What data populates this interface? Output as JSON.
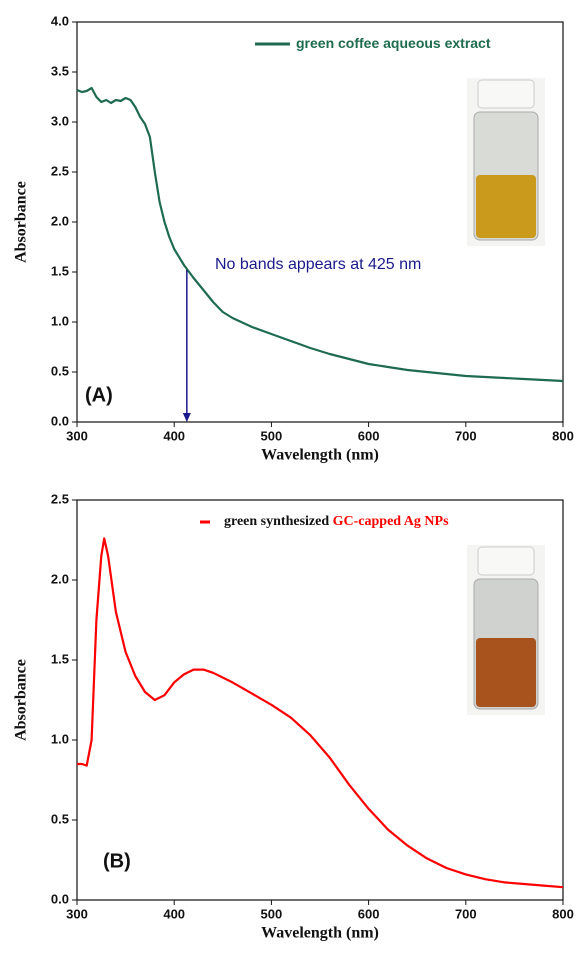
{
  "chart_data": [
    {
      "type": "line",
      "x_label": "Wavelength (nm)",
      "y_label": "Absorbance",
      "xlim": [
        300,
        800
      ],
      "xticks": [
        300,
        400,
        500,
        600,
        700,
        800
      ],
      "ylim": [
        0,
        4
      ],
      "yticks": [
        {
          "value": 0,
          "label": "0.0"
        },
        {
          "value": 0.5,
          "label": "0.5"
        },
        {
          "value": 1,
          "label": "1.0"
        },
        {
          "value": 1.5,
          "label": "1.5"
        },
        {
          "value": 2,
          "label": "2.0"
        },
        {
          "value": 2.5,
          "label": "2.5"
        },
        {
          "value": 3,
          "label": "3.0"
        },
        {
          "value": 3.5,
          "label": "3.5"
        },
        {
          "value": 4,
          "label": "4.0"
        }
      ],
      "series": [
        {
          "name": "green coffee aqueous extract",
          "color": "#1e6b4f",
          "x": [
            300,
            305,
            310,
            315,
            320,
            325,
            330,
            335,
            340,
            345,
            350,
            355,
            360,
            365,
            370,
            375,
            380,
            385,
            390,
            395,
            400,
            410,
            420,
            430,
            440,
            450,
            460,
            480,
            500,
            520,
            540,
            560,
            580,
            600,
            620,
            640,
            660,
            680,
            700,
            720,
            740,
            760,
            780,
            800
          ],
          "values": [
            3.32,
            3.3,
            3.31,
            3.34,
            3.25,
            3.2,
            3.22,
            3.19,
            3.22,
            3.21,
            3.24,
            3.22,
            3.15,
            3.05,
            2.98,
            2.85,
            2.5,
            2.2,
            2.0,
            1.85,
            1.73,
            1.57,
            1.44,
            1.32,
            1.2,
            1.1,
            1.04,
            0.95,
            0.88,
            0.81,
            0.74,
            0.68,
            0.63,
            0.58,
            0.55,
            0.52,
            0.5,
            0.48,
            0.46,
            0.45,
            0.44,
            0.43,
            0.42,
            0.41
          ]
        }
      ],
      "annotation": "No bands appears at 425 nm",
      "annotation_color": "#1a1a8c",
      "arrow": {
        "x": 413,
        "from": 1.52,
        "to": 0
      },
      "panel_label": "(A)"
    },
    {
      "type": "line",
      "x_label": "Wavelength (nm)",
      "y_label": "Absorbance",
      "xlim": [
        300,
        800
      ],
      "xticks": [
        300,
        400,
        500,
        600,
        700,
        800
      ],
      "ylim": [
        0,
        2.5
      ],
      "yticks": [
        {
          "value": 0,
          "label": "0.0"
        },
        {
          "value": 0.5,
          "label": "0.5"
        },
        {
          "value": 1,
          "label": "1.0"
        },
        {
          "value": 1.5,
          "label": "1.5"
        },
        {
          "value": 2,
          "label": "2.0"
        },
        {
          "value": 2.5,
          "label": "2.5"
        }
      ],
      "series": [
        {
          "name": "green synthesized",
          "color": "#ff0000",
          "x": [
            300,
            305,
            310,
            315,
            320,
            325,
            328,
            332,
            340,
            350,
            360,
            370,
            380,
            390,
            400,
            410,
            420,
            430,
            440,
            460,
            480,
            500,
            520,
            540,
            560,
            580,
            600,
            620,
            640,
            660,
            680,
            700,
            720,
            740,
            760,
            780,
            800
          ],
          "values": [
            0.85,
            0.85,
            0.84,
            1.0,
            1.75,
            2.15,
            2.26,
            2.15,
            1.8,
            1.55,
            1.4,
            1.3,
            1.25,
            1.28,
            1.36,
            1.41,
            1.44,
            1.44,
            1.42,
            1.36,
            1.29,
            1.22,
            1.14,
            1.03,
            0.89,
            0.72,
            0.57,
            0.44,
            0.34,
            0.26,
            0.2,
            0.16,
            0.13,
            0.11,
            0.1,
            0.09,
            0.08
          ]
        }
      ],
      "legend_suffix": "GC-capped Ag NPs",
      "legend_suffix_color": "#ff0000",
      "panel_label": "(B)"
    }
  ]
}
